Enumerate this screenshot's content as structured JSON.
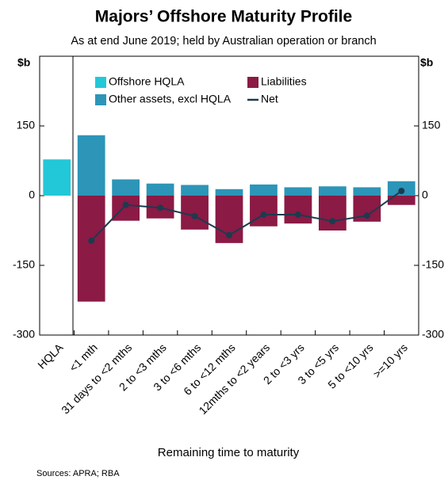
{
  "chart_data": {
    "type": "bar",
    "title": "Majors’ Offshore Maturity Profile",
    "subtitle": "As at end June 2019; held by Australian operation or branch",
    "y_unit": "$b",
    "xlabel": "Remaining time to maturity",
    "source": "Sources:   APRA; RBA",
    "categories": [
      "HQLA",
      "<1 mth",
      "31 days to <2 mths",
      "2 to <3 mths",
      "3 to <6 mths",
      "6 to <12 mths",
      "12mths to <2 years",
      "2 to <3 yrs",
      "3 to <5 yrs",
      "5 to <10 yrs",
      ">=10 yrs"
    ],
    "series": [
      {
        "name": "Offshore HQLA",
        "type": "bar",
        "color": "#22c8d8",
        "values": [
          78,
          null,
          null,
          null,
          null,
          null,
          null,
          null,
          null,
          null,
          null
        ]
      },
      {
        "name": "Other assets, excl HQLA",
        "type": "bar",
        "color": "#2c95b8",
        "values": [
          null,
          130,
          35,
          26,
          23,
          14,
          24,
          18,
          20,
          18,
          31
        ]
      },
      {
        "name": "Liabilities",
        "type": "bar",
        "color": "#8b1a45",
        "values": [
          null,
          -228,
          -54,
          -49,
          -73,
          -102,
          -66,
          -60,
          -75,
          -56,
          -20
        ]
      },
      {
        "name": "Net",
        "type": "line",
        "color": "#1e3a4e",
        "values": [
          null,
          -97,
          -20,
          -26,
          -44,
          -85,
          -41,
          -41,
          -55,
          -43,
          10
        ]
      }
    ],
    "ylim": [
      -300,
      300
    ],
    "yticks": [
      -300,
      -150,
      0,
      150
    ],
    "legend": "top",
    "grid": false
  }
}
